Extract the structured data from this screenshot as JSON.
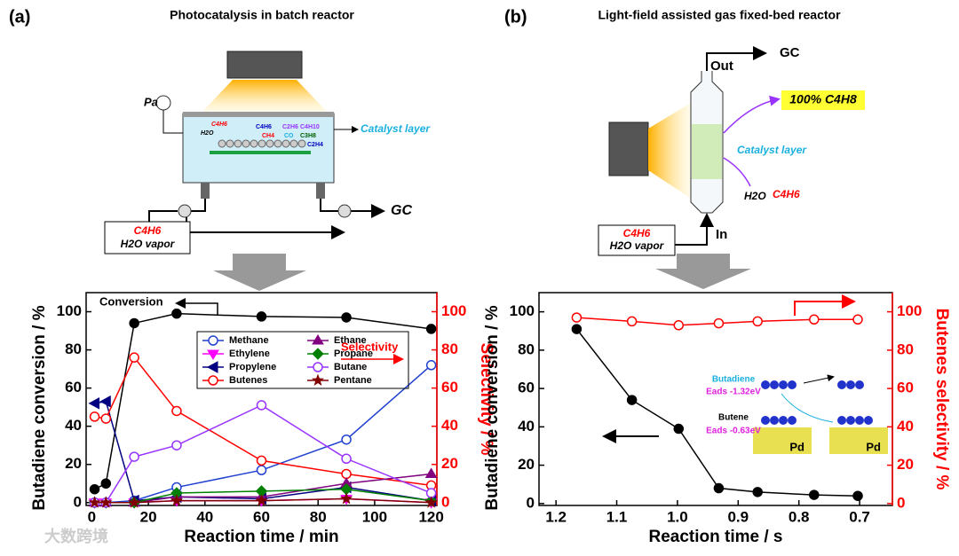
{
  "panels": [
    {
      "label": "(a)",
      "title": "Photocatalysis in batch reactor",
      "pressure": "Pa",
      "catalyst": "Catalyst layer",
      "feed": [
        "C4H6",
        "H2O vapor"
      ],
      "outlet": "GC",
      "species": [
        "C4H6",
        "H2O",
        "C4H6",
        "CH4",
        "C2H6",
        "CO",
        "C4H10",
        "C3H8",
        "C2H4"
      ]
    },
    {
      "label": "(b)",
      "title": "Light-field assisted gas fixed-bed reactor",
      "out": "Out",
      "outlet": "GC",
      "product": "100% C4H8",
      "catalyst": "Catalyst layer",
      "exhaust": [
        "H2O",
        "C4H6"
      ],
      "in": "In",
      "feed": [
        "C4H6",
        "H2O vapor"
      ]
    }
  ],
  "watermark": "大数跨境",
  "chart_data": [
    {
      "type": "line",
      "xlabel": "Reaction time / min",
      "ylabel": "Butadiene conversion / %",
      "y2label": "Selectivity / %",
      "y2_color": "#ff0000",
      "xlim": [
        -2,
        122
      ],
      "xticks": [
        0,
        20,
        40,
        60,
        80,
        100,
        120
      ],
      "ylim": [
        -1.5,
        110
      ],
      "yticks": [
        0,
        20,
        40,
        60,
        80,
        100
      ],
      "y2lim": [
        -1.5,
        110
      ],
      "y2ticks": [
        0,
        20,
        40,
        60,
        80,
        100
      ],
      "x": [
        1,
        5,
        15,
        30,
        60,
        90,
        120
      ],
      "legend": true,
      "annotations": [
        "Selectivity"
      ],
      "series": [
        {
          "name": "Conversion",
          "color": "#000000",
          "marker": "circle-filled",
          "axis": "y",
          "values": [
            7,
            10,
            94,
            99,
            97.5,
            97,
            91
          ]
        },
        {
          "name": "Methane",
          "color": "#2040d0",
          "marker": "circle-open",
          "axis": "y2",
          "values": [
            0,
            0,
            1,
            8,
            17,
            33,
            72
          ]
        },
        {
          "name": "Ethylene",
          "color": "#ff00ff",
          "marker": "triangle-down",
          "axis": "y2",
          "values": [
            0,
            0,
            0,
            1,
            1,
            2,
            0
          ]
        },
        {
          "name": "Propylene",
          "color": "#000080",
          "marker": "triangle-left",
          "axis": "y2",
          "values": [
            52,
            53,
            1,
            3,
            2,
            8,
            1
          ]
        },
        {
          "name": "Butenes",
          "color": "#ff0000",
          "marker": "circle-open",
          "axis": "y2",
          "values": [
            45,
            44,
            76,
            48,
            22,
            15,
            9
          ]
        },
        {
          "name": "Ethane",
          "color": "#800080",
          "marker": "triangle-up",
          "axis": "y2",
          "values": [
            0,
            0,
            0,
            3,
            3,
            10,
            15
          ]
        },
        {
          "name": "Propane",
          "color": "#008000",
          "marker": "diamond",
          "axis": "y2",
          "values": [
            0,
            0,
            0,
            5,
            6,
            7,
            1
          ]
        },
        {
          "name": "Butane",
          "color": "#9933ff",
          "marker": "circle-open",
          "axis": "y2",
          "values": [
            0,
            0,
            24,
            30,
            51,
            23,
            5
          ]
        },
        {
          "name": "Pentane",
          "color": "#800000",
          "marker": "star",
          "axis": "y2",
          "values": [
            0,
            0,
            0,
            1,
            1,
            2,
            0
          ]
        }
      ]
    },
    {
      "type": "line",
      "xlabel": "Reaction time / s",
      "ylabel": "Butadiene conversion / %",
      "y2label": "Butenes selectivity / %",
      "y2_color": "#ff0000",
      "xlim": [
        1.228,
        0.646
      ],
      "xticks": [
        1.2,
        1.1,
        {
          "value": 1,
          "label": "1.0"
        },
        0.9,
        0.8,
        0.7
      ],
      "ylim": [
        -1,
        110
      ],
      "yticks": [
        0,
        20,
        40,
        60,
        80,
        100
      ],
      "y2lim": [
        -1,
        110
      ],
      "y2ticks": [
        0,
        20,
        40,
        60,
        80,
        100
      ],
      "x": [
        1.166,
        1.075,
        0.998,
        0.932,
        0.868,
        0.775,
        0.703
      ],
      "legend": false,
      "annotations": [
        "Butadiene",
        "Eads -1.32eV",
        "Butene",
        "Eads -0.63eV",
        "Pd",
        "Pd"
      ],
      "series": [
        {
          "color": "#000000",
          "marker": "circle-filled",
          "axis": "y",
          "values": [
            91,
            54,
            39,
            8,
            6,
            4.5,
            4
          ]
        },
        {
          "color": "#ff0000",
          "marker": "circle-open",
          "axis": "y2",
          "values": [
            97,
            95,
            93,
            94,
            95,
            96,
            96
          ]
        }
      ]
    }
  ]
}
